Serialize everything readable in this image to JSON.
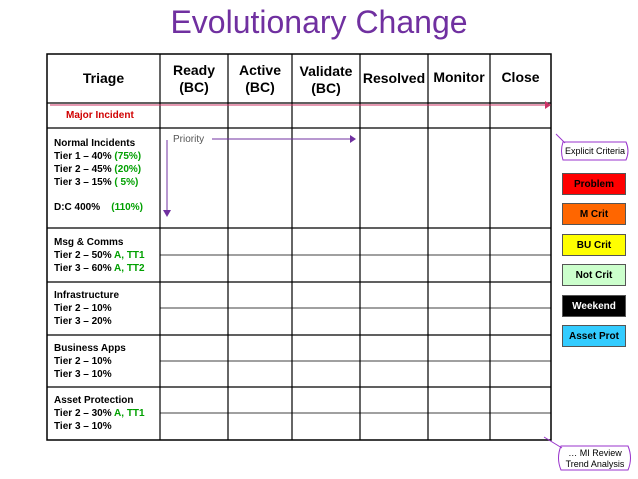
{
  "title": "Evolutionary Change",
  "headers": {
    "triage": "Triage",
    "ready": [
      "Ready",
      "(BC)"
    ],
    "active": [
      "Active",
      "(BC)"
    ],
    "validate": [
      "Validate",
      "(BC)"
    ],
    "resolved": "Resolved",
    "monitor": "Monitor",
    "close": "Close"
  },
  "major_incident": "Major Incident",
  "normal": {
    "title": "Normal Incidents",
    "t1": "Tier 1 – 40% ",
    "t1g": "(75%)",
    "t2": "Tier 2 – 45% ",
    "t2g": "(20%)",
    "t3": "Tier 3 – 15% ",
    "t3g": "(  5%)",
    "dc": "D:C 400% ",
    "dcg": "(110%)",
    "priority": "Priority"
  },
  "msg": {
    "title": "Msg & Comms",
    "t2": "Tier 2 – 50% ",
    "t2g": "A, TT1",
    "t3": "Tier 3 – 60% ",
    "t3g": "A, TT2"
  },
  "infra": {
    "title": "Infrastructure",
    "t2": "Tier 2 – 10%",
    "t3": "Tier 3 – 20%"
  },
  "bizapps": {
    "title": "Business Apps",
    "t2": "Tier 2 – 10%",
    "t3": "Tier 3 – 10%"
  },
  "asset": {
    "title": "Asset Protection",
    "t2": "Tier 2 – 30% ",
    "t2g": "A, TT1",
    "t3": "Tier 3 – 10%"
  },
  "legend": [
    {
      "label": "Problem",
      "bg": "#ff0000",
      "fg": "#000000"
    },
    {
      "label": "M Crit",
      "bg": "#ff6600",
      "fg": "#000000"
    },
    {
      "label": "BU Crit",
      "bg": "#ffff00",
      "fg": "#000000"
    },
    {
      "label": "Not Crit",
      "bg": "#ccffcc",
      "fg": "#000000"
    },
    {
      "label": "Weekend",
      "bg": "#000000",
      "fg": "#ffffff"
    },
    {
      "label": "Asset Prot",
      "bg": "#33ccff",
      "fg": "#000000"
    }
  ],
  "explicit_criteria": "Explicit Criteria",
  "mi_review": [
    "… MI Review",
    "Trend Analysis"
  ],
  "colors": {
    "title": "#7030a0",
    "callout": "#9933cc",
    "arrow": "#cc3366",
    "priority_arrow": "#7030a0"
  }
}
